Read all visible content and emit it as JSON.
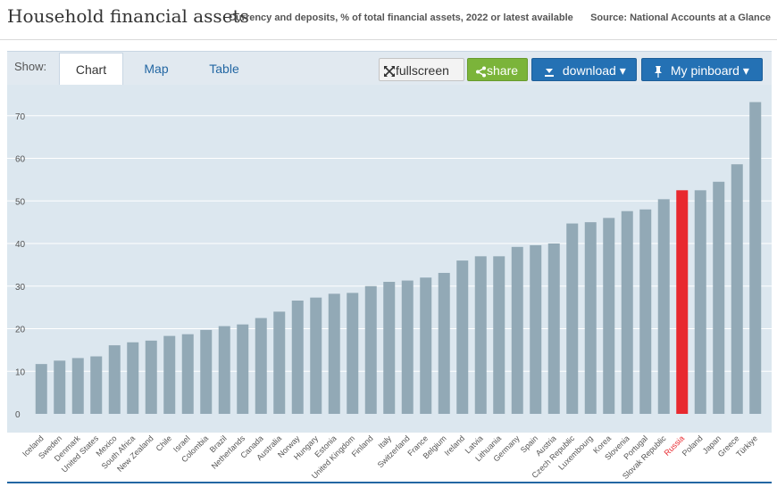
{
  "header": {
    "title": "Household financial assets",
    "subtitle": "Currency and deposits, % of total financial assets, 2022 or latest available",
    "source": "Source: National Accounts at a Glance"
  },
  "toolbar": {
    "show_label": "Show:",
    "tabs": [
      {
        "label": "Chart",
        "active": true
      },
      {
        "label": "Map",
        "active": false
      },
      {
        "label": "Table",
        "active": false
      }
    ],
    "fullscreen_label": "fullscreen",
    "share_label": "share",
    "download_label": "download ▾",
    "pinboard_label": "My pinboard ▾"
  },
  "colors": {
    "bar": "#92a9b6",
    "highlight": "#e8292f",
    "plot_background": "#dce7ef",
    "gridline": "#ffffff",
    "accent": "#2471b4",
    "share": "#7bb43a"
  },
  "icons": {
    "fullscreen": "expand-arrows-icon",
    "share": "share-icon",
    "download": "download-arrow-icon",
    "pinboard": "pushpin-icon"
  },
  "chart_data": {
    "type": "bar",
    "title": "Household financial assets",
    "categories": [
      "Iceland",
      "Sweden",
      "Denmark",
      "United States",
      "Mexico",
      "South Africa",
      "New Zealand",
      "Chile",
      "Israel",
      "Colombia",
      "Brazil",
      "Netherlands",
      "Canada",
      "Australia",
      "Norway",
      "Hungary",
      "Estonia",
      "United Kingdom",
      "Finland",
      "Italy",
      "Switzerland",
      "France",
      "Belgium",
      "Ireland",
      "Latvia",
      "Lithuania",
      "Germany",
      "Spain",
      "Austria",
      "Czech Republic",
      "Luxembourg",
      "Korea",
      "Slovenia",
      "Portugal",
      "Slovak Republic",
      "Russia",
      "Poland",
      "Japan",
      "Greece",
      "Türkiye"
    ],
    "values": [
      11.7,
      12.5,
      13.1,
      13.5,
      16.1,
      16.8,
      17.2,
      18.3,
      18.7,
      19.7,
      20.6,
      21.0,
      22.5,
      24.0,
      26.6,
      27.3,
      28.2,
      28.4,
      30.0,
      31.0,
      31.3,
      32.0,
      33.1,
      36.0,
      37.0,
      37.0,
      39.2,
      39.6,
      40.0,
      44.7,
      45.0,
      46.0,
      47.6,
      48.0,
      50.4,
      52.5,
      52.5,
      54.5,
      58.6,
      73.2
    ],
    "highlight_category": "Russia",
    "ylim": [
      0,
      80
    ],
    "yticks": [
      0,
      10,
      20,
      30,
      40,
      50,
      60,
      70
    ],
    "grid": true,
    "xlabel": "",
    "ylabel": ""
  }
}
